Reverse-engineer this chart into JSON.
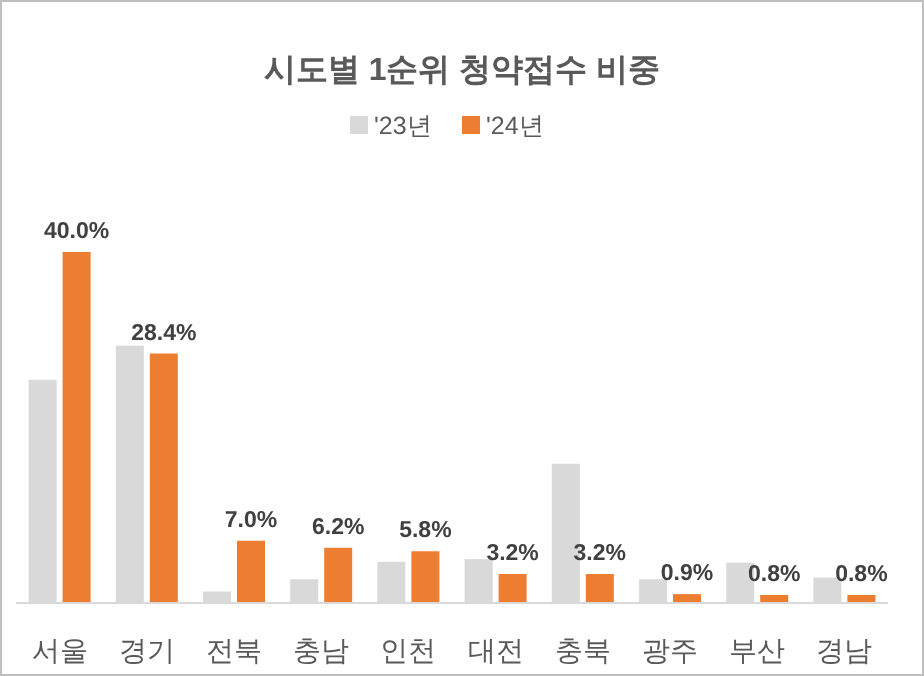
{
  "chart_data": {
    "type": "bar",
    "title": "시도별 1순위 청약접수 비중",
    "categories": [
      "서울",
      "경기",
      "전북",
      "충남",
      "인천",
      "대전",
      "충북",
      "광주",
      "부산",
      "경남"
    ],
    "series": [
      {
        "name": "'23년",
        "color": "#d9d9d9",
        "values": [
          25.4,
          29.3,
          1.2,
          2.6,
          4.6,
          4.9,
          15.8,
          2.6,
          4.5,
          2.8
        ]
      },
      {
        "name": "'24년",
        "color": "#ed7d31",
        "values": [
          40.0,
          28.4,
          7.0,
          6.2,
          5.8,
          3.2,
          3.2,
          0.9,
          0.8,
          0.8
        ],
        "value_labels": [
          "40.0%",
          "28.4%",
          "7.0%",
          "6.2%",
          "5.8%",
          "3.2%",
          "3.2%",
          "0.9%",
          "0.8%",
          "0.8%"
        ]
      }
    ],
    "legend": "top"
  }
}
